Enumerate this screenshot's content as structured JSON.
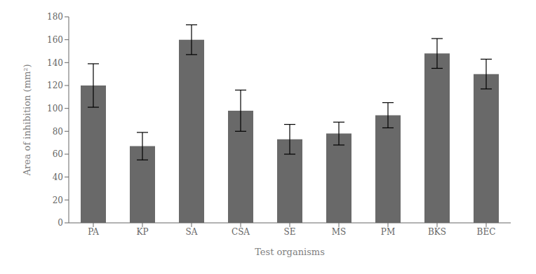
{
  "chart_data": {
    "type": "bar",
    "categories": [
      "PA",
      "KP",
      "SA",
      "CSA",
      "SE",
      "MS",
      "PM",
      "BKS",
      "BEC"
    ],
    "values": [
      120,
      67,
      160,
      98,
      73,
      78,
      94,
      148,
      130
    ],
    "errors": [
      19,
      12,
      13,
      18,
      13,
      10,
      11,
      13,
      13
    ],
    "color": "#696969",
    "xlabel": "Test organisms",
    "ylabel": "Area of inhibition (mm²)",
    "ylim": [
      0,
      180
    ],
    "yticks": [
      0,
      20,
      40,
      60,
      80,
      100,
      120,
      140,
      160,
      180
    ],
    "grid": false
  }
}
